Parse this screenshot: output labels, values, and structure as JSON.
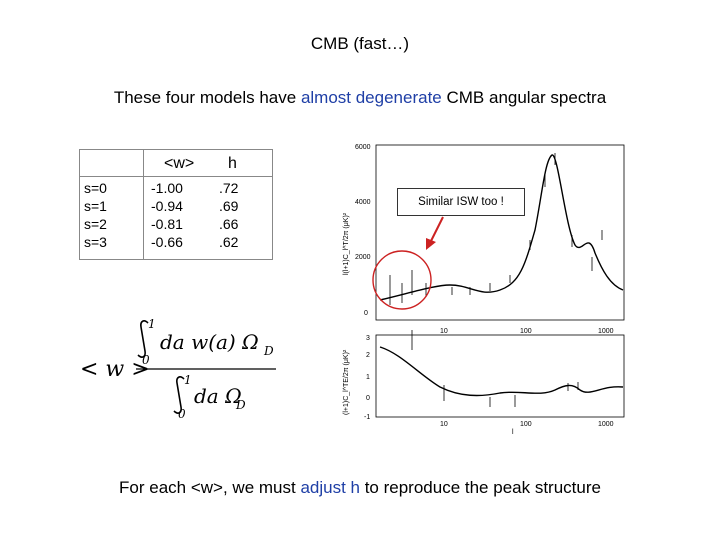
{
  "title": "CMB (fast…)",
  "subtitle": {
    "before": "These four models have ",
    "highlight": "almost degenerate",
    "after": " CMB angular spectra"
  },
  "table": {
    "headers": {
      "w": "<w>",
      "h": "h"
    },
    "rows": [
      {
        "s": "s=0",
        "w": "-1.00",
        "h": ".72"
      },
      {
        "s": "s=1",
        "w": "-0.94",
        "h": ".69"
      },
      {
        "s": "s=2",
        "w": "-0.81",
        "h": ".66"
      },
      {
        "s": "s=3",
        "w": "-0.66",
        "h": ".62"
      }
    ]
  },
  "equation": {
    "lhs": "< w >",
    "num_upper": "1",
    "num_lower": "0",
    "num_body": "da w(a) Ω",
    "num_sub": "D",
    "den_upper": "1",
    "den_lower": "0",
    "den_body": "da Ω",
    "den_sub": "D"
  },
  "callout": "Similar ISW too !",
  "plot_top": {
    "ylabel": "l(l+1)C_l^T/2π (μK)²",
    "yticks": [
      "6000",
      "4000",
      "2000",
      "0"
    ],
    "xticks": [
      "10",
      "100",
      "1000"
    ]
  },
  "plot_bottom": {
    "ylabel": "(l+1)C_l^TE/2π (μK)²",
    "yticks": [
      "3",
      "2",
      "1",
      "0",
      "-1"
    ],
    "xticks": [
      "10",
      "100",
      "1000"
    ],
    "xlabel": "l"
  },
  "footer": {
    "before": "For each <w>, we must ",
    "highlight": "adjust h",
    "after": " to reproduce the peak structure"
  },
  "colors": {
    "highlight": "#1f3fa6",
    "circle": "#cc2222",
    "arrow": "#cc2222"
  }
}
